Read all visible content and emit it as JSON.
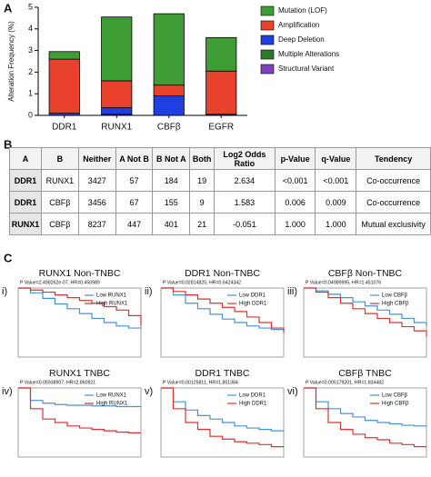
{
  "panel_labels": [
    "A",
    "B",
    "C"
  ],
  "chart_data": {
    "type": "bar",
    "stacked": true,
    "ylabel": "Alteration Frequency (%)",
    "categories": [
      "DDR1",
      "RUNX1",
      "CBFβ",
      "EGFR"
    ],
    "ylim": [
      0,
      5
    ],
    "yticks": [
      0,
      1,
      2,
      3,
      4,
      5
    ],
    "series": [
      {
        "name": "Mutation (LOF)",
        "color": "#3f9d35",
        "values": [
          0.35,
          2.95,
          3.3,
          1.55
        ]
      },
      {
        "name": "Amplification",
        "color": "#e8412c",
        "values": [
          2.5,
          1.25,
          0.5,
          2.0
        ]
      },
      {
        "name": "Deep Deletion",
        "color": "#1f3fe0",
        "values": [
          0.1,
          0.3,
          0.9,
          0.05
        ]
      },
      {
        "name": "Multiple Alterations",
        "color": "#2e7a2a",
        "values": [
          0,
          0,
          0,
          0
        ]
      },
      {
        "name": "Structural Variant",
        "color": "#8040c0",
        "values": [
          0,
          0.05,
          0,
          0
        ]
      }
    ]
  },
  "table": {
    "header": [
      "A",
      "B",
      "Neither",
      "A Not B",
      "B Not A",
      "Both",
      "Log2 Odds Ratio",
      "p-Value",
      "q-Value",
      "Tendency"
    ],
    "rows": [
      [
        "DDR1",
        "RUNX1",
        "3427",
        "57",
        "184",
        "19",
        "2.634",
        "<0.001",
        "<0.001",
        "Co-occurrence"
      ],
      [
        "DDR1",
        "CBFβ",
        "3456",
        "67",
        "155",
        "9",
        "1.583",
        "0.006",
        "0.009",
        "Co-occurrence"
      ],
      [
        "RUNX1",
        "CBFβ",
        "8237",
        "447",
        "401",
        "21",
        "-0.051",
        "1.000",
        "1.000",
        "Mutual exclusivity"
      ]
    ]
  },
  "km_plots": [
    {
      "numeral": "i)",
      "title": "RUNX1 Non-TNBC",
      "subtitle": "P Value=2.498262e-07, HR=0.450989",
      "ylim": [
        0,
        1
      ],
      "series": [
        {
          "name": "Low RUNX1",
          "color": "#4a90d9",
          "values": [
            1,
            0.93,
            0.85,
            0.77,
            0.7,
            0.63,
            0.56,
            0.5,
            0.45,
            0.42,
            0.4
          ]
        },
        {
          "name": "High RUNX1",
          "color": "#e03030",
          "values": [
            1,
            0.97,
            0.94,
            0.9,
            0.86,
            0.82,
            0.78,
            0.73,
            0.68,
            0.6,
            0.45
          ]
        }
      ]
    },
    {
      "numeral": "ii)",
      "title": "DDR1 Non-TNBC",
      "subtitle": "P Value=0.02814825, HR=0.6424342",
      "ylim": [
        0,
        1
      ],
      "series": [
        {
          "name": "Low DDR1",
          "color": "#4a90d9",
          "values": [
            1,
            0.9,
            0.78,
            0.7,
            0.62,
            0.55,
            0.5,
            0.45,
            0.42,
            0.4,
            0.38
          ]
        },
        {
          "name": "High DDR1",
          "color": "#e03030",
          "values": [
            1,
            0.95,
            0.9,
            0.84,
            0.78,
            0.72,
            0.66,
            0.58,
            0.5,
            0.42,
            0.35
          ]
        }
      ]
    },
    {
      "numeral": "iii)",
      "title": "CBFβ Non-TNBC",
      "subtitle": "P Value=0.04989995, HR=1.451076",
      "ylim": [
        0,
        1
      ],
      "series": [
        {
          "name": "Low CBFβ",
          "color": "#4a90d9",
          "values": [
            1,
            0.96,
            0.91,
            0.86,
            0.8,
            0.74,
            0.68,
            0.62,
            0.56,
            0.5,
            0.45
          ]
        },
        {
          "name": "High CBFβ",
          "color": "#e03030",
          "values": [
            1,
            0.94,
            0.86,
            0.78,
            0.7,
            0.63,
            0.56,
            0.5,
            0.44,
            0.38,
            0.3
          ]
        }
      ]
    },
    {
      "numeral": "iv)",
      "title": "RUNX1 TNBC",
      "subtitle": "P Value=0.05938907, HR=2.860921",
      "ylim": [
        0,
        1
      ],
      "series": [
        {
          "name": "Low RUNX1",
          "color": "#4a90d9",
          "values": [
            1,
            0.82,
            0.78,
            0.76,
            0.75,
            0.75,
            0.74,
            0.74,
            0.73,
            0.73,
            0.73
          ]
        },
        {
          "name": "High RUNX1",
          "color": "#e03030",
          "values": [
            1,
            0.7,
            0.55,
            0.5,
            0.45,
            0.42,
            0.4,
            0.38,
            0.36,
            0.35,
            0.35
          ]
        }
      ]
    },
    {
      "numeral": "v)",
      "title": "DDR1 TNBC",
      "subtitle": "P Value=0.00125811, HR=1.851384",
      "ylim": [
        0,
        1
      ],
      "series": [
        {
          "name": "Low DDR1",
          "color": "#4a90d9",
          "values": [
            1,
            0.8,
            0.68,
            0.6,
            0.55,
            0.5,
            0.45,
            0.42,
            0.4,
            0.38,
            0.37
          ]
        },
        {
          "name": "High DDR1",
          "color": "#e03030",
          "values": [
            1,
            0.7,
            0.5,
            0.4,
            0.3,
            0.26,
            0.22,
            0.2,
            0.18,
            0.15,
            0.15
          ]
        }
      ]
    },
    {
      "numeral": "vi)",
      "title": "CBFβ TNBC",
      "subtitle": "P Value=0.005179201, HR=1.834482",
      "ylim": [
        0,
        1
      ],
      "series": [
        {
          "name": "Low CBFβ",
          "color": "#4a90d9",
          "values": [
            1,
            0.8,
            0.7,
            0.63,
            0.58,
            0.53,
            0.5,
            0.48,
            0.46,
            0.45,
            0.45
          ]
        },
        {
          "name": "High CBFβ",
          "color": "#e03030",
          "values": [
            1,
            0.7,
            0.5,
            0.4,
            0.33,
            0.28,
            0.25,
            0.2,
            0.18,
            0.15,
            0.15
          ]
        }
      ]
    }
  ]
}
